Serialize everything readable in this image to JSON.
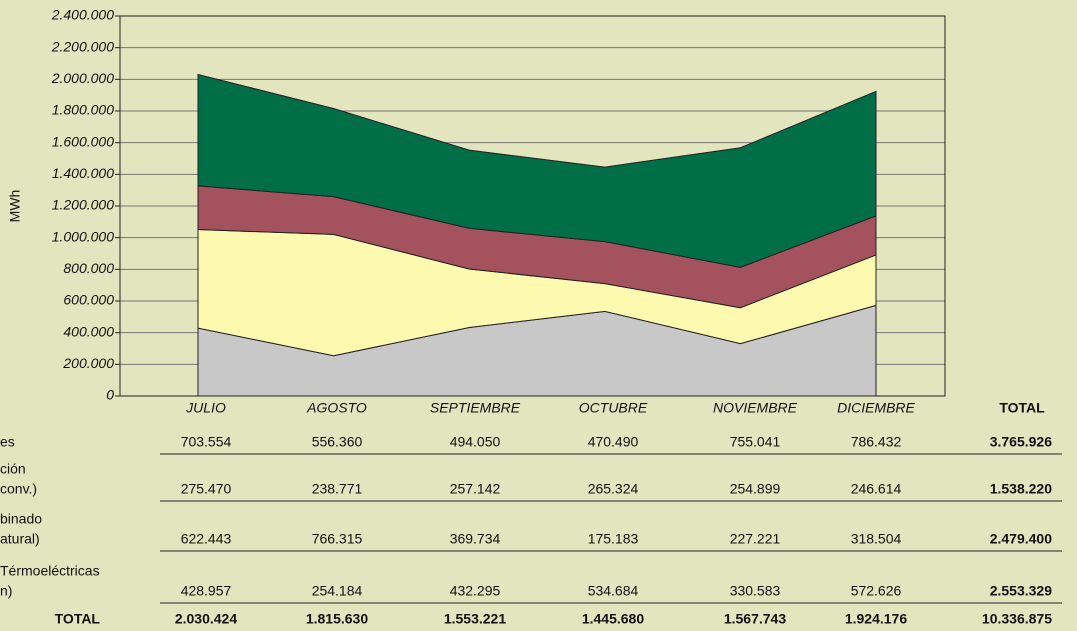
{
  "chart_data": {
    "type": "area",
    "stacked": true,
    "ylabel": "MWh",
    "categories": [
      "JULIO",
      "AGOSTO",
      "SEPTIEMBRE",
      "OCTUBRE",
      "NOVIEMBRE",
      "DICIEMBRE"
    ],
    "ylim": [
      0,
      2400000
    ],
    "yticks": [
      {
        "value": 0,
        "label": "0"
      },
      {
        "value": 200000,
        "label": "200.000"
      },
      {
        "value": 400000,
        "label": "400.000"
      },
      {
        "value": 600000,
        "label": "600.000"
      },
      {
        "value": 800000,
        "label": "800.000"
      },
      {
        "value": 1000000,
        "label": "1.000.000"
      },
      {
        "value": 1200000,
        "label": "1.200.000"
      },
      {
        "value": 1400000,
        "label": "1.400.000"
      },
      {
        "value": 1600000,
        "label": "1.600.000"
      },
      {
        "value": 1800000,
        "label": "1.800.000"
      },
      {
        "value": 2000000,
        "label": "2.000.000"
      },
      {
        "value": 2200000,
        "label": "2.200.000"
      },
      {
        "value": 2400000,
        "label": "2.400.000"
      }
    ],
    "grid": true,
    "series": [
      {
        "label_lines": [
          "Térmoeléctricas",
          "n)"
        ],
        "color": "#c8c8c8",
        "values": [
          428957,
          254184,
          432295,
          534684,
          330583,
          572626
        ],
        "value_labels": [
          "428.957",
          "254.184",
          "432.295",
          "534.684",
          "330.583",
          "572.626"
        ],
        "total": 2553329,
        "total_label": "2.553.329"
      },
      {
        "label_lines": [
          "binado",
          "atural)"
        ],
        "color": "#fdfab0",
        "values": [
          622443,
          766315,
          369734,
          175183,
          227221,
          318504
        ],
        "value_labels": [
          "622.443",
          "766.315",
          "369.734",
          "175.183",
          "227.221",
          "318.504"
        ],
        "total": 2479400,
        "total_label": "2.479.400"
      },
      {
        "label_lines": [
          "ción",
          " conv.)"
        ],
        "color": "#a3525e",
        "values": [
          275470,
          238771,
          257142,
          265324,
          254899,
          246614
        ],
        "value_labels": [
          "275.470",
          "238.771",
          "257.142",
          "265.324",
          "254.899",
          "246.614"
        ],
        "total": 1538220,
        "total_label": "1.538.220"
      },
      {
        "label_lines": [
          "es"
        ],
        "color": "#006e46",
        "values": [
          703554,
          556360,
          494050,
          470490,
          755041,
          786432
        ],
        "value_labels": [
          "703.554",
          "556.360",
          "494.050",
          "470.490",
          "755.041",
          "786.432"
        ],
        "total": 3765926,
        "total_label": "3.765.926"
      }
    ],
    "total_header": "TOTAL",
    "total_row_label": "TOTAL",
    "column_totals": {
      "values": [
        2030424,
        1815630,
        1553221,
        1445680,
        1567743,
        1924176
      ],
      "value_labels": [
        "2.030.424",
        "1.815.630",
        "1.553.221",
        "1.445.680",
        "1.567.743",
        "1.924.176"
      ]
    },
    "grand_total": {
      "value": 10336875,
      "label": "10.336.875"
    }
  }
}
